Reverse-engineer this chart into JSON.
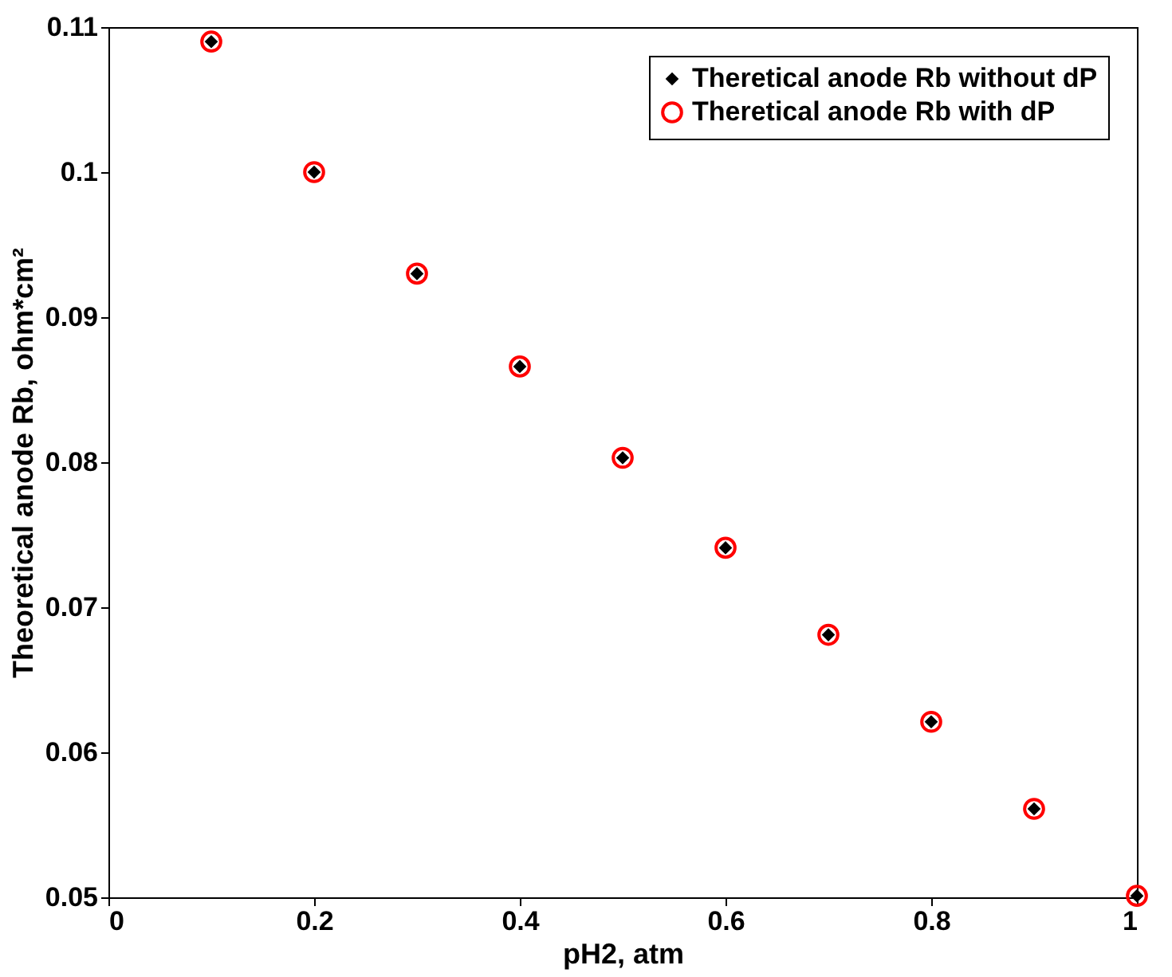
{
  "chart_data": {
    "type": "scatter",
    "xlabel": "pH2, atm",
    "ylabel": "Theoretical anode Rb, ohm*cm²",
    "x": [
      0.1,
      0.2,
      0.3,
      0.4,
      0.5,
      0.6,
      0.7,
      0.8,
      0.9,
      1.0
    ],
    "series": [
      {
        "name": "Theretical anode Rb without dP",
        "color": "#000000",
        "marker": "diamond",
        "values": [
          0.109,
          0.1,
          0.093,
          0.0866,
          0.0803,
          0.0741,
          0.0681,
          0.0621,
          0.0561,
          0.0501
        ]
      },
      {
        "name": "Theretical anode Rb with dP",
        "color": "#ff0000",
        "marker": "circle",
        "values": [
          0.109,
          0.1,
          0.093,
          0.0866,
          0.0803,
          0.0741,
          0.0681,
          0.0621,
          0.0561,
          0.0501
        ]
      }
    ],
    "xlim": [
      0,
      1
    ],
    "xticks": [
      0,
      0.2,
      0.4,
      0.6,
      0.8,
      1
    ],
    "ylim": [
      0.05,
      0.11
    ],
    "yticks": [
      0.05,
      0.06,
      0.07,
      0.08,
      0.09,
      0.1,
      0.11
    ],
    "grid": false,
    "legend": "top right"
  }
}
